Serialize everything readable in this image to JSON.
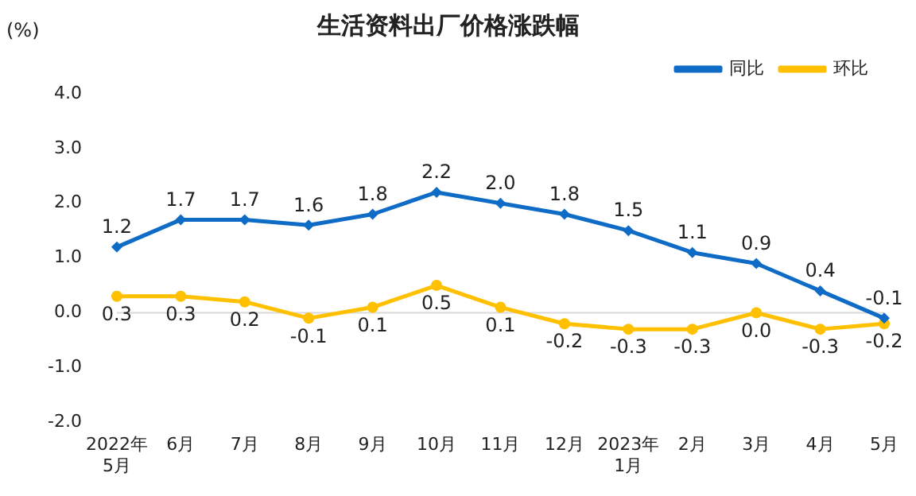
{
  "chart_data": {
    "type": "line",
    "title": "生活资料出厂价格涨跌幅",
    "ylabel": "(%)",
    "categories": [
      "2022年\n5月",
      "6月",
      "7月",
      "8月",
      "9月",
      "10月",
      "11月",
      "12月",
      "2023年\n1月",
      "2月",
      "3月",
      "4月",
      "5月"
    ],
    "series": [
      {
        "name": "同比",
        "color": "#0e6bc6",
        "marker": "diamond",
        "values": [
          1.2,
          1.7,
          1.7,
          1.6,
          1.8,
          2.2,
          2.0,
          1.8,
          1.5,
          1.1,
          0.9,
          0.4,
          -0.1
        ],
        "value_labels": [
          "1.2",
          "1.7",
          "1.7",
          "1.6",
          "1.8",
          "2.2",
          "2.0",
          "1.8",
          "1.5",
          "1.1",
          "0.9",
          "0.4",
          "-0.1"
        ]
      },
      {
        "name": "环比",
        "color": "#ffc000",
        "marker": "circle",
        "values": [
          0.3,
          0.3,
          0.2,
          -0.1,
          0.1,
          0.5,
          0.1,
          -0.2,
          -0.3,
          -0.3,
          0.0,
          -0.3,
          -0.2
        ],
        "value_labels": [
          "0.3",
          "0.3",
          "0.2",
          "-0.1",
          "0.1",
          "0.5",
          "0.1",
          "-0.2",
          "-0.3",
          "-0.3",
          "0.0",
          "-0.3",
          "-0.2"
        ]
      }
    ],
    "ylim": [
      -2,
      4
    ],
    "yticks": [
      {
        "value": -2,
        "label": "-2.0"
      },
      {
        "value": -1,
        "label": "-1.0"
      },
      {
        "value": 0,
        "label": "0.0"
      },
      {
        "value": 1,
        "label": "1.0"
      },
      {
        "value": 2,
        "label": "2.0"
      },
      {
        "value": 3,
        "label": "3.0"
      },
      {
        "value": 4,
        "label": "4.0"
      }
    ],
    "ref_lines": [
      {
        "axis": "y",
        "value": 0,
        "color": "#d9d9d9"
      }
    ],
    "grid": false,
    "legend": "top right",
    "line_style": "solid"
  }
}
